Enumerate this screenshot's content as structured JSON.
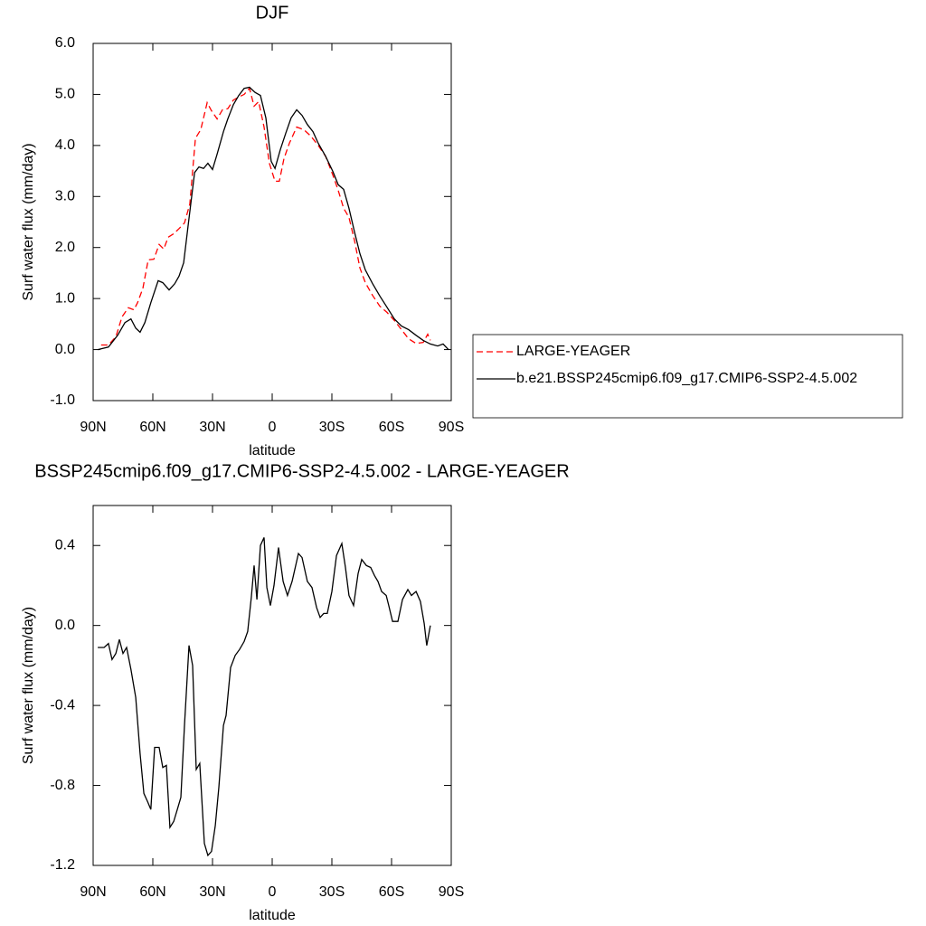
{
  "chart_data": [
    {
      "type": "line",
      "title": "DJF",
      "xlabel": "latitude",
      "ylabel": "Surf water flux (mm/day)",
      "xlim": [
        90,
        -90
      ],
      "xticks": [
        {
          "value": 90,
          "label": "90N"
        },
        {
          "value": 60,
          "label": "60N"
        },
        {
          "value": 30,
          "label": "30N"
        },
        0,
        {
          "value": -30,
          "label": "30S"
        },
        {
          "value": -60,
          "label": "60S"
        },
        {
          "value": -90,
          "label": "90S"
        }
      ],
      "ylim": [
        -1,
        6
      ],
      "yticks": [
        {
          "value": -1,
          "label": "-1.0"
        },
        {
          "value": 0,
          "label": "0.0"
        },
        {
          "value": 1,
          "label": "1.0"
        },
        {
          "value": 2,
          "label": "2.0"
        },
        {
          "value": 3,
          "label": "3.0"
        },
        {
          "value": 4,
          "label": "4.0"
        },
        {
          "value": 5,
          "label": "5.0"
        },
        {
          "value": 6,
          "label": "6.0"
        }
      ],
      "legend": "right",
      "series": [
        {
          "name": "LARGE-YEAGER",
          "color": "#ff0000",
          "style": "dashed",
          "x": [
            86,
            82.3,
            78.6,
            75.5,
            72.3,
            69.5,
            67.7,
            65,
            62.3,
            59.5,
            56.8,
            54.5,
            52.3,
            49.5,
            46.8,
            44.1,
            41.4,
            38.6,
            35.9,
            32.7,
            30.5,
            27.7,
            25,
            22.3,
            19.5,
            16.8,
            14.1,
            11.4,
            9.1,
            6.8,
            4.1,
            1.4,
            -1.4,
            -3.6,
            -5.9,
            -8.6,
            -12.3,
            -15.9,
            -19.5,
            -23.2,
            -26.8,
            -30.5,
            -33.2,
            -35.9,
            -38.6,
            -41.4,
            -44.1,
            -46.8,
            -50.5,
            -54.1,
            -57.7,
            -61.4,
            -65,
            -68.6,
            -72.3,
            -75.9,
            -78.2,
            -79.5
          ],
          "values": [
            0.09,
            0.09,
            0.25,
            0.64,
            0.82,
            0.78,
            0.92,
            1.2,
            1.76,
            1.77,
            2.06,
            1.97,
            2.2,
            2.27,
            2.37,
            2.48,
            2.85,
            4.14,
            4.31,
            4.84,
            4.68,
            4.52,
            4.7,
            4.72,
            4.89,
            4.95,
            5.0,
            5.12,
            4.77,
            4.86,
            4.36,
            3.65,
            3.3,
            3.3,
            3.74,
            4.04,
            4.36,
            4.31,
            4.18,
            4.0,
            3.79,
            3.42,
            3.12,
            2.77,
            2.59,
            2.13,
            1.6,
            1.31,
            1.06,
            0.85,
            0.73,
            0.57,
            0.39,
            0.21,
            0.12,
            0.14,
            0.3,
            0.18
          ]
        },
        {
          "name": "b.e21.BSSP245cmip6.f09_g17.CMIP6-SSP2-4.5.002",
          "color": "#000000",
          "style": "solid",
          "x": [
            87.7,
            82.3,
            77.7,
            74,
            71,
            68.6,
            66.4,
            64,
            61,
            57.3,
            55,
            51.8,
            49,
            46.8,
            44.5,
            42.3,
            39,
            36.8,
            34.5,
            32.3,
            30,
            27.7,
            24.5,
            22.3,
            19.5,
            16.8,
            14.1,
            11.4,
            8.6,
            5.9,
            3.2,
            0.5,
            -1.4,
            -4.1,
            -6.8,
            -9.5,
            -12.3,
            -15,
            -17.7,
            -20.5,
            -23.2,
            -26.8,
            -30.5,
            -33.2,
            -35.9,
            -38.6,
            -41.4,
            -44.1,
            -46.8,
            -50.5,
            -54.1,
            -57.7,
            -61.4,
            -65,
            -68.6,
            -72.3,
            -75.9,
            -79.5,
            -83.2,
            -85.9,
            -88.6
          ],
          "values": [
            0.0,
            0.05,
            0.28,
            0.53,
            0.6,
            0.42,
            0.34,
            0.53,
            0.92,
            1.35,
            1.31,
            1.17,
            1.29,
            1.44,
            1.7,
            2.41,
            3.47,
            3.58,
            3.55,
            3.65,
            3.53,
            3.83,
            4.27,
            4.52,
            4.8,
            4.98,
            5.12,
            5.14,
            5.04,
            4.98,
            4.54,
            3.69,
            3.55,
            3.92,
            4.24,
            4.54,
            4.7,
            4.59,
            4.41,
            4.27,
            4.04,
            3.79,
            3.49,
            3.23,
            3.14,
            2.77,
            2.3,
            1.88,
            1.56,
            1.29,
            1.05,
            0.83,
            0.6,
            0.46,
            0.39,
            0.28,
            0.18,
            0.11,
            0.07,
            0.11,
            0.0
          ]
        }
      ]
    },
    {
      "type": "line",
      "title": "BSSP245cmip6.f09_g17.CMIP6-SSP2-4.5.002 - LARGE-YEAGER",
      "xlabel": "latitude",
      "ylabel": "Surf water flux (mm/day)",
      "xlim": [
        90,
        -90
      ],
      "xticks": [
        {
          "value": 90,
          "label": "90N"
        },
        {
          "value": 60,
          "label": "60N"
        },
        {
          "value": 30,
          "label": "30N"
        },
        0,
        {
          "value": -30,
          "label": "30S"
        },
        {
          "value": -60,
          "label": "60S"
        },
        {
          "value": -90,
          "label": "90S"
        }
      ],
      "ylim": [
        -1.2,
        0.6
      ],
      "yticks": [
        -1.2,
        -0.8,
        -0.4,
        {
          "value": 0,
          "label": "0.0"
        },
        0.4
      ],
      "series": [
        {
          "color": "#000000",
          "style": "solid",
          "x": [
            87.7,
            84.5,
            82.3,
            80.5,
            78.6,
            76.8,
            75,
            73.2,
            71,
            68.6,
            66.4,
            64.5,
            62.7,
            61,
            59.1,
            56.8,
            55,
            53.2,
            51.4,
            49.5,
            47.7,
            45.9,
            44.1,
            41.8,
            40,
            38.2,
            36.4,
            34.1,
            32.3,
            30.5,
            28.6,
            26.8,
            24.5,
            23.2,
            20.9,
            18.6,
            16.4,
            14.1,
            12.3,
            10.5,
            9.1,
            7.7,
            5.9,
            4.1,
            2.7,
            0.9,
            -0.9,
            -3.2,
            -5.5,
            -7.7,
            -10,
            -13.2,
            -15,
            -17.7,
            -20,
            -22.3,
            -24.1,
            -25.9,
            -27.7,
            -30,
            -32.3,
            -35,
            -36.8,
            -38.6,
            -40.9,
            -43.2,
            -45,
            -47.3,
            -49.5,
            -51.4,
            -53.2,
            -55,
            -57.3,
            -58.6,
            -60.5,
            -63.2,
            -65.5,
            -68.2,
            -70,
            -72.3,
            -74.5,
            -76.4,
            -77.7,
            -79.5
          ],
          "values": [
            -0.11,
            -0.11,
            -0.09,
            -0.17,
            -0.14,
            -0.07,
            -0.14,
            -0.11,
            -0.22,
            -0.36,
            -0.64,
            -0.84,
            -0.88,
            -0.92,
            -0.61,
            -0.61,
            -0.71,
            -0.7,
            -1.01,
            -0.98,
            -0.92,
            -0.86,
            -0.5,
            -0.1,
            -0.2,
            -0.72,
            -0.69,
            -1.09,
            -1.15,
            -1.13,
            -1.0,
            -0.81,
            -0.5,
            -0.45,
            -0.21,
            -0.15,
            -0.12,
            -0.08,
            -0.03,
            0.14,
            0.3,
            0.13,
            0.4,
            0.44,
            0.19,
            0.1,
            0.2,
            0.39,
            0.22,
            0.15,
            0.22,
            0.36,
            0.34,
            0.22,
            0.19,
            0.09,
            0.04,
            0.06,
            0.06,
            0.17,
            0.35,
            0.41,
            0.29,
            0.15,
            0.1,
            0.26,
            0.33,
            0.3,
            0.29,
            0.25,
            0.22,
            0.17,
            0.15,
            0.1,
            0.02,
            0.02,
            0.13,
            0.18,
            0.15,
            0.17,
            0.12,
            0.01,
            -0.1,
            0.0
          ]
        }
      ]
    }
  ]
}
